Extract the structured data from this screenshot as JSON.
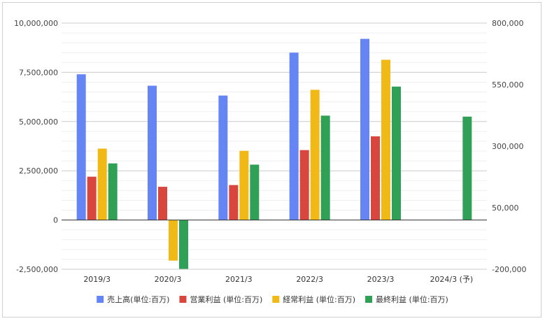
{
  "chart_data": {
    "type": "bar",
    "categories": [
      "2019/3",
      "2020/3",
      "2021/3",
      "2022/3",
      "2023/3",
      "2024/3 (予)"
    ],
    "left_axis": {
      "ylim": [
        -2500000,
        10000000
      ],
      "ticks": [
        -2500000,
        0,
        2500000,
        5000000,
        7500000,
        10000000
      ],
      "tick_labels": [
        "-2,500,000",
        "0",
        "2,500,000",
        "5,000,000",
        "7,500,000",
        "10,000,000"
      ]
    },
    "right_axis": {
      "ylim": [
        -200000,
        800000
      ],
      "ticks": [
        -200000,
        50000,
        300000,
        550000,
        800000
      ],
      "tick_labels": [
        "-200,000",
        "50,000",
        "300,000",
        "550,000",
        "800,000"
      ]
    },
    "grid": true,
    "legend_position": "bottom",
    "series": [
      {
        "name": "売上高(単位:百万)",
        "color": "#6585f5",
        "axis": "left",
        "values": [
          7400000,
          6820000,
          6320000,
          8500000,
          9200000,
          null
        ]
      },
      {
        "name": "営業利益 (単位:百万)",
        "color": "#d9463e",
        "axis": "right",
        "values": [
          176000,
          135000,
          142000,
          284000,
          340000,
          null
        ]
      },
      {
        "name": "経常利益 (単位:百万)",
        "color": "#f1b915",
        "axis": "right",
        "values": [
          290000,
          -165000,
          281000,
          529000,
          651000,
          null
        ]
      },
      {
        "name": "最終利益 (単位:百万)",
        "color": "#30a057",
        "axis": "right",
        "values": [
          230000,
          -200000,
          225000,
          424000,
          542000,
          420000
        ]
      }
    ]
  }
}
